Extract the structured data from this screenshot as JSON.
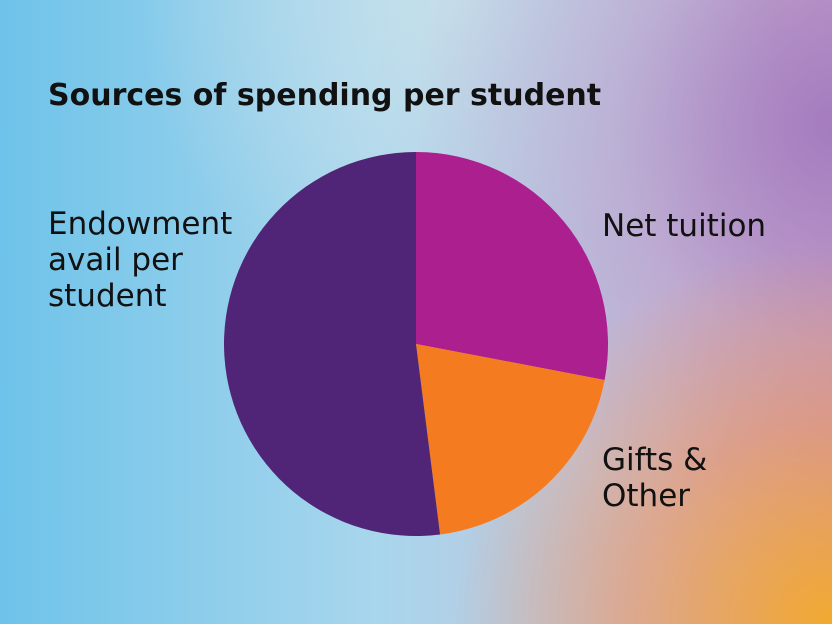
{
  "chart_data": {
    "type": "pie",
    "title": "Sources of spending per student",
    "categories": [
      "Net tuition",
      "Gifts & Other",
      "Endowment avail per student"
    ],
    "values": [
      28,
      20,
      52
    ],
    "colors": [
      "#ab1f8f",
      "#f47b20",
      "#502476"
    ]
  }
}
